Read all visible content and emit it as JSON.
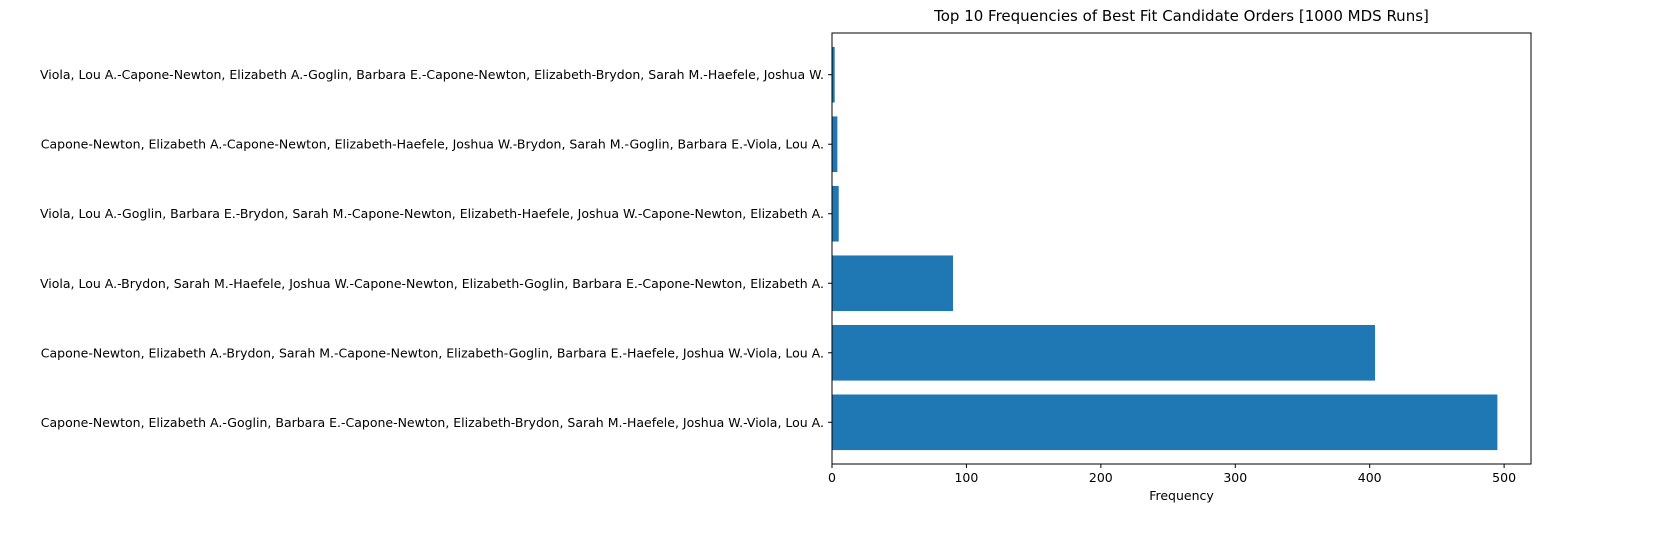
{
  "chart_data": {
    "type": "bar",
    "orientation": "horizontal",
    "title": "Top 10 Frequencies of Best Fit Candidate Orders [1000 MDS Runs]",
    "xlabel": "Frequency",
    "ylabel": "",
    "xlim": [
      0,
      520
    ],
    "x_ticks": [
      0,
      100,
      200,
      300,
      400,
      500
    ],
    "x_tick_labels": [
      "0",
      "100",
      "200",
      "300",
      "400",
      "500"
    ],
    "grid": false,
    "bar_color": "#1f77b4",
    "categories": [
      "Capone-Newton, Elizabeth A.-Goglin, Barbara E.-Capone-Newton, Elizabeth-Brydon, Sarah M.-Haefele, Joshua W.-Viola, Lou A.",
      "Capone-Newton, Elizabeth A.-Brydon, Sarah M.-Capone-Newton, Elizabeth-Goglin, Barbara E.-Haefele, Joshua W.-Viola, Lou A.",
      "Viola, Lou A.-Brydon, Sarah M.-Haefele, Joshua W.-Capone-Newton, Elizabeth-Goglin, Barbara E.-Capone-Newton, Elizabeth A.",
      "Viola, Lou A.-Goglin, Barbara E.-Brydon, Sarah M.-Capone-Newton, Elizabeth-Haefele, Joshua W.-Capone-Newton, Elizabeth A.",
      "Capone-Newton, Elizabeth A.-Capone-Newton, Elizabeth-Haefele, Joshua W.-Brydon, Sarah M.-Goglin, Barbara E.-Viola, Lou A.",
      "Viola, Lou A.-Capone-Newton, Elizabeth A.-Goglin, Barbara E.-Capone-Newton, Elizabeth-Brydon, Sarah M.-Haefele, Joshua W."
    ],
    "values": [
      495,
      404,
      90,
      5,
      4,
      2
    ]
  }
}
